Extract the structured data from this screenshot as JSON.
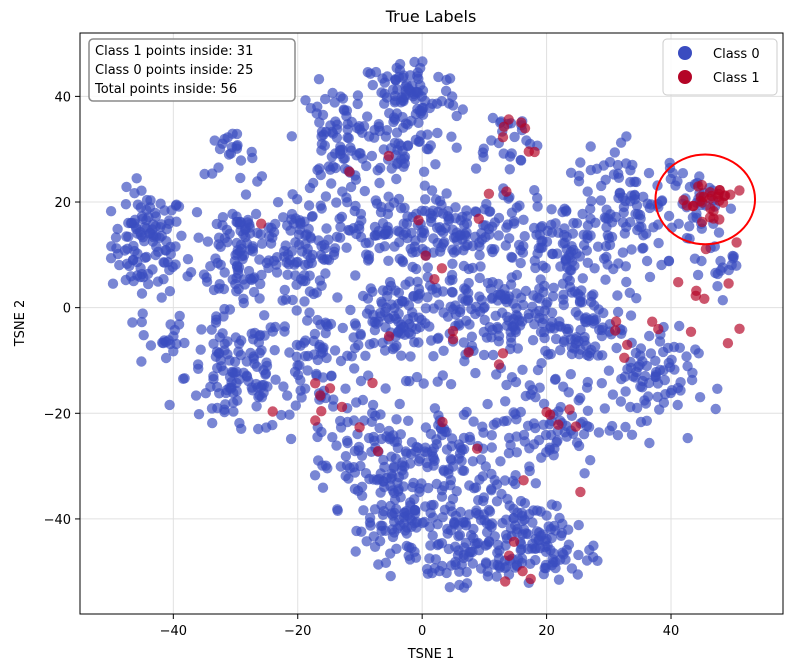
{
  "chart_data": {
    "type": "scatter",
    "title": "True Labels",
    "xlabel": "TSNE 1",
    "ylabel": "TSNE 2",
    "xlim": [
      -55,
      58
    ],
    "ylim": [
      -58,
      52
    ],
    "xticks": [
      -40,
      -20,
      0,
      20,
      40
    ],
    "yticks": [
      -40,
      -20,
      0,
      20,
      40
    ],
    "grid": true,
    "legend_position": "top-right",
    "series": [
      {
        "name": "Class 0",
        "color": "#3a4cc0",
        "clusters": [
          {
            "cx": -44,
            "cy": 12,
            "sx": 3,
            "sy": 5,
            "n": 110
          },
          {
            "cx": -42,
            "cy": -6,
            "sx": 2,
            "sy": 3,
            "n": 20
          },
          {
            "cx": -29,
            "cy": 11,
            "sx": 4,
            "sy": 6,
            "n": 110
          },
          {
            "cx": -19,
            "cy": 10,
            "sx": 3,
            "sy": 4,
            "n": 70
          },
          {
            "cx": -31,
            "cy": 29,
            "sx": 2,
            "sy": 2,
            "n": 20
          },
          {
            "cx": -30,
            "cy": -13,
            "sx": 4,
            "sy": 6,
            "n": 110
          },
          {
            "cx": -16,
            "cy": -10,
            "sx": 4,
            "sy": 5,
            "n": 70
          },
          {
            "cx": -14,
            "cy": 32,
            "sx": 3,
            "sy": 5,
            "n": 70
          },
          {
            "cx": -2,
            "cy": 40,
            "sx": 4,
            "sy": 4,
            "n": 90
          },
          {
            "cx": -4,
            "cy": 30,
            "sx": 4,
            "sy": 3,
            "n": 50
          },
          {
            "cx": 13,
            "cy": 32,
            "sx": 3,
            "sy": 3,
            "n": 25
          },
          {
            "cx": -8,
            "cy": 15,
            "sx": 6,
            "sy": 4,
            "n": 100
          },
          {
            "cx": 8,
            "cy": 14,
            "sx": 6,
            "sy": 4,
            "n": 100
          },
          {
            "cx": 22,
            "cy": 12,
            "sx": 5,
            "sy": 4,
            "n": 80
          },
          {
            "cx": 34,
            "cy": 18,
            "sx": 5,
            "sy": 6,
            "n": 110
          },
          {
            "cx": -2,
            "cy": -2,
            "sx": 6,
            "sy": 5,
            "n": 140
          },
          {
            "cx": 14,
            "cy": -2,
            "sx": 6,
            "sy": 5,
            "n": 120
          },
          {
            "cx": 26,
            "cy": -3,
            "sx": 4,
            "sy": 4,
            "n": 70
          },
          {
            "cx": 36,
            "cy": -14,
            "sx": 4,
            "sy": 5,
            "n": 80
          },
          {
            "cx": 18,
            "cy": -22,
            "sx": 6,
            "sy": 5,
            "n": 100
          },
          {
            "cx": -8,
            "cy": -28,
            "sx": 5,
            "sy": 6,
            "n": 100
          },
          {
            "cx": 4,
            "cy": -28,
            "sx": 4,
            "sy": 5,
            "n": 70
          },
          {
            "cx": -2,
            "cy": -40,
            "sx": 5,
            "sy": 4,
            "n": 90
          },
          {
            "cx": 12,
            "cy": -41,
            "sx": 5,
            "sy": 5,
            "n": 110
          },
          {
            "cx": 20,
            "cy": -46,
            "sx": 4,
            "sy": 3,
            "n": 60
          },
          {
            "cx": 5,
            "cy": -48,
            "sx": 4,
            "sy": 2,
            "n": 40
          },
          {
            "cx": 48,
            "cy": 9,
            "sx": 2,
            "sy": 3,
            "n": 20
          },
          {
            "cx": 44,
            "cy": 20,
            "sx": 2,
            "sy": 3,
            "n": 25
          }
        ]
      },
      {
        "name": "Class 1",
        "color": "#b40426",
        "clusters": [
          {
            "cx": 46,
            "cy": 20,
            "sx": 2,
            "sy": 3,
            "n": 31
          },
          {
            "cx": 44,
            "cy": 0,
            "sx": 3,
            "sy": 4,
            "n": 8
          },
          {
            "cx": 32,
            "cy": -3,
            "sx": 3,
            "sy": 3,
            "n": 6
          },
          {
            "cx": 14,
            "cy": 32,
            "sx": 3,
            "sy": 3,
            "n": 7
          },
          {
            "cx": -18,
            "cy": -17,
            "sx": 3,
            "sy": 3,
            "n": 6
          },
          {
            "cx": 16,
            "cy": -49,
            "sx": 3,
            "sy": 3,
            "n": 5
          },
          {
            "cx": 23,
            "cy": -21,
            "sx": 3,
            "sy": 2,
            "n": 5
          },
          {
            "cx": -5,
            "cy": 12,
            "sx": 15,
            "sy": 15,
            "n": 14
          },
          {
            "cx": 10,
            "cy": -20,
            "sx": 12,
            "sy": 12,
            "n": 10
          }
        ]
      }
    ],
    "annotation_circle": {
      "cx": 45.5,
      "cy": 20.5,
      "rx": 8,
      "ry": 8.5,
      "color": "#ff0000"
    },
    "info_box": {
      "lines": [
        "Class 1 points inside: 31",
        "Class 0 points inside: 25",
        "Total points inside: 56"
      ]
    }
  }
}
